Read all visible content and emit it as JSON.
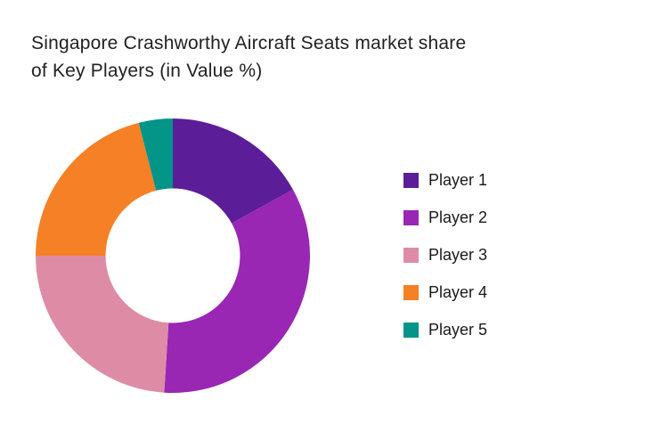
{
  "title": {
    "lines": [
      "Singapore Crashworthy Aircraft Seats market share",
      "of Key Players (in Value %)"
    ],
    "full_text": "Singapore Crashworthy Aircraft Seats market share of Key Players (in Value %)",
    "color": "#212121"
  },
  "chart_data": {
    "type": "pie",
    "subtype": "donut",
    "title": "Singapore Crashworthy Aircraft Seats market share of Key Players (in Value %)",
    "categories": [
      "Player 1",
      "Player 2",
      "Player 3",
      "Player 4",
      "Player 5"
    ],
    "values": [
      17,
      34,
      24,
      21,
      4
    ],
    "unit": "%",
    "colors": [
      "#5C1D99",
      "#9927B3",
      "#DE8CA6",
      "#F58025",
      "#049488"
    ],
    "start_angle_deg": 0,
    "direction": "clockwise",
    "inner_radius_ratio": 0.49,
    "legend_position": "right",
    "data_labels_shown": false
  },
  "legend": {
    "items": [
      {
        "label": "Player 1",
        "color": "#5C1D99"
      },
      {
        "label": "Player 2",
        "color": "#9927B3"
      },
      {
        "label": "Player 3",
        "color": "#DE8CA6"
      },
      {
        "label": "Player 4",
        "color": "#F58025"
      },
      {
        "label": "Player 5",
        "color": "#049488"
      }
    ]
  }
}
